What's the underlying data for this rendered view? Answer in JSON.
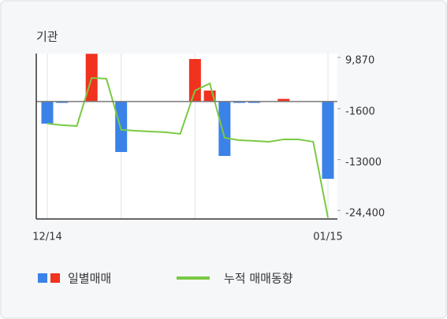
{
  "chart_data": {
    "type": "bar_line",
    "title": "기관",
    "categories": [
      "12/14",
      null,
      null,
      null,
      null,
      null,
      null,
      null,
      null,
      null,
      null,
      null,
      null,
      null,
      null,
      null,
      null,
      null,
      null,
      "01/15"
    ],
    "series": [
      {
        "name": "일별매매",
        "type": "bar",
        "colors": {
          "up": "#f0321e",
          "down": "#3b82e8"
        },
        "values": [
          -4940,
          -300,
          0,
          10700,
          0,
          -11300,
          0,
          0,
          0,
          0,
          9530,
          2470,
          -12180,
          -300,
          -300,
          0,
          600,
          0,
          0,
          -17300
        ]
      },
      {
        "name": "누적 매매동향",
        "type": "line",
        "color": "#7ac943",
        "values": [
          -4940,
          -5290,
          -5470,
          5290,
          5120,
          -6350,
          -6530,
          -6710,
          -6880,
          -7240,
          2470,
          4060,
          -8120,
          -8650,
          -8820,
          -9000,
          -8470,
          -8470,
          -9000,
          -26000
        ]
      }
    ],
    "ylim": [
      -26300,
      10750
    ],
    "yticks": [
      {
        "value": 9870,
        "label": "9,870"
      },
      -1600,
      -13000,
      {
        "value": -24400,
        "label": "-24,400"
      }
    ],
    "y_axis_side": "right",
    "grid": true
  }
}
